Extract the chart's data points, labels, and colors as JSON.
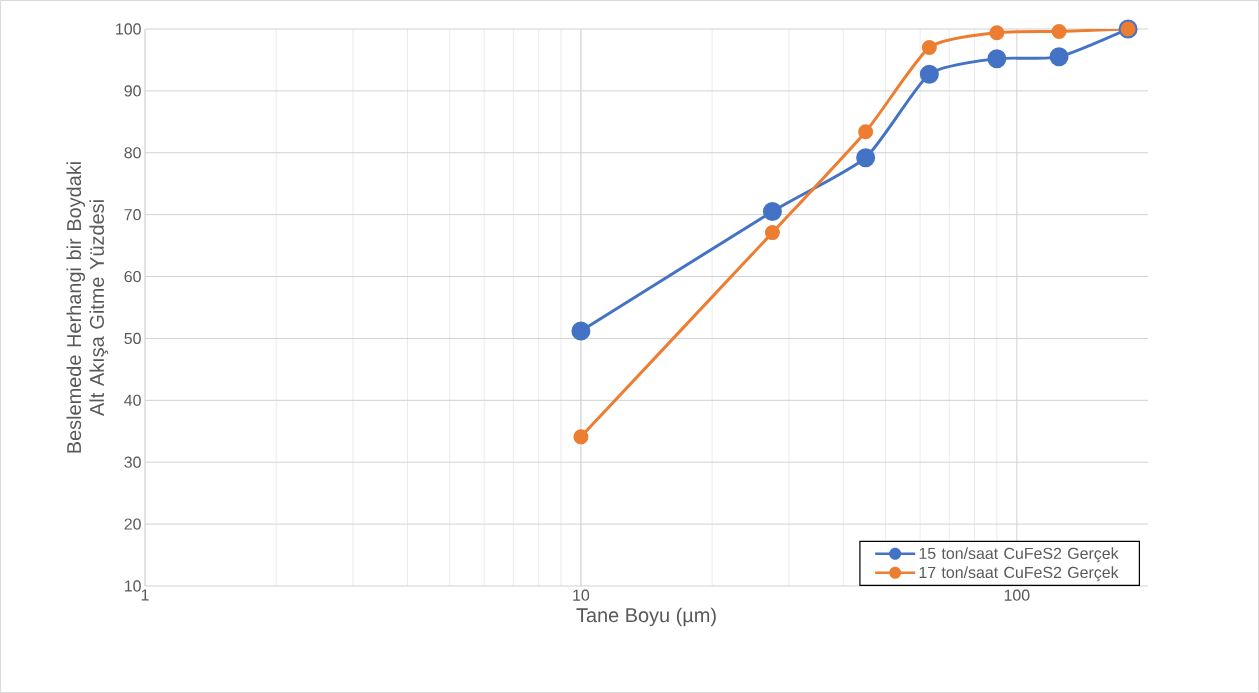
{
  "chart_data": {
    "type": "line",
    "xlabel": "Tane Boyu (µm)",
    "ylabel": "Beslemede Herhangi bir Boydaki Alt Akışa Gitme Yüzdesi",
    "x": [
      10,
      27.5,
      45,
      63,
      90,
      125,
      180
    ],
    "series": [
      {
        "name": "15 ton/saat CuFeS2 Gerçek",
        "color": "#4472c4",
        "values": [
          51.2,
          70.5,
          79.2,
          92.7,
          95.2,
          95.5,
          100
        ]
      },
      {
        "name": "17 ton/saat CuFeS2 Gerçek",
        "color": "#ed7d31",
        "values": [
          34.1,
          67.1,
          83.4,
          97.0,
          99.4,
          99.6,
          100
        ]
      }
    ],
    "log": "x",
    "xlim": [
      1,
      200
    ],
    "xticks": [
      1,
      10,
      100
    ],
    "ylim": [
      10,
      100
    ],
    "yticks": [
      10,
      20,
      30,
      40,
      50,
      60,
      70,
      80,
      90,
      100
    ],
    "grid": true,
    "legend": "bottom right",
    "marker": "circle",
    "line_style": "solid"
  }
}
